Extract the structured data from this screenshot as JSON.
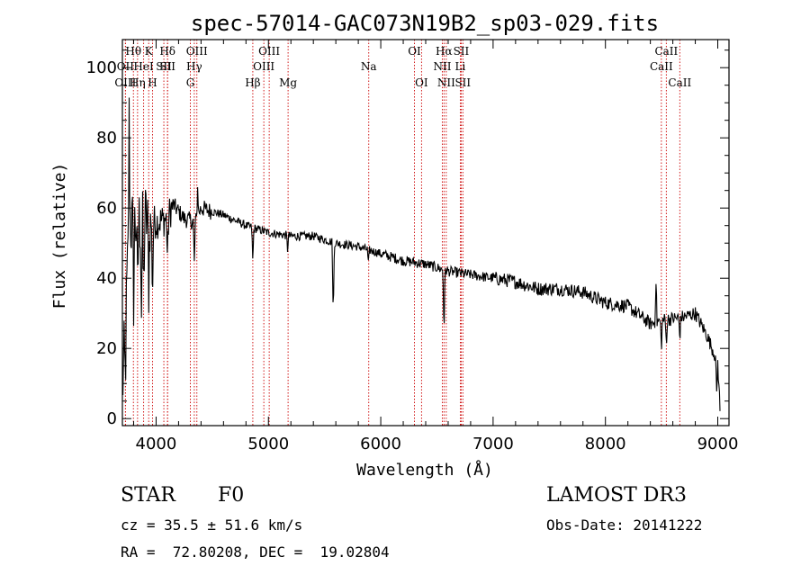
{
  "chart_data": {
    "type": "line",
    "title": "spec-57014-GAC073N19B2_sp03-029.fits",
    "xlabel": "Wavelength (Å)",
    "ylabel": "Flux (relative)",
    "xlim": [
      3700,
      9100
    ],
    "ylim": [
      -2,
      108
    ],
    "x_ticks": [
      4000,
      5000,
      6000,
      7000,
      8000,
      9000
    ],
    "y_ticks": [
      0,
      20,
      40,
      60,
      80,
      100
    ],
    "continuum": [
      [
        3700,
        8
      ],
      [
        3720,
        20
      ],
      [
        3760,
        55
      ],
      [
        3800,
        55
      ],
      [
        3900,
        57
      ],
      [
        4000,
        56
      ],
      [
        4100,
        57
      ],
      [
        4150,
        61
      ],
      [
        4250,
        57
      ],
      [
        4350,
        56
      ],
      [
        4400,
        60
      ],
      [
        4600,
        58
      ],
      [
        4800,
        55
      ],
      [
        5000,
        53
      ],
      [
        5200,
        52
      ],
      [
        5400,
        52
      ],
      [
        5600,
        50
      ],
      [
        5800,
        49
      ],
      [
        6000,
        47
      ],
      [
        6200,
        45
      ],
      [
        6400,
        44
      ],
      [
        6600,
        42
      ],
      [
        6800,
        41
      ],
      [
        7000,
        40
      ],
      [
        7200,
        39
      ],
      [
        7400,
        37
      ],
      [
        7600,
        37
      ],
      [
        7800,
        36
      ],
      [
        8000,
        33
      ],
      [
        8200,
        32
      ],
      [
        8400,
        27
      ],
      [
        8500,
        28
      ],
      [
        8700,
        29
      ],
      [
        8800,
        30
      ],
      [
        8900,
        24
      ],
      [
        9000,
        16
      ],
      [
        9020,
        3
      ]
    ],
    "features": [
      {
        "x": 3727,
        "depth": -15
      },
      {
        "x": 3760,
        "depth": 30
      },
      {
        "x": 3800,
        "depth": -20
      },
      {
        "x": 3835,
        "depth": -20
      },
      {
        "x": 3870,
        "depth": -25
      },
      {
        "x": 3889,
        "depth": -22
      },
      {
        "x": 3934,
        "depth": -20
      },
      {
        "x": 3968,
        "depth": -22
      },
      {
        "x": 4102,
        "depth": -12
      },
      {
        "x": 4340,
        "depth": -12
      },
      {
        "x": 4370,
        "depth": 8
      },
      {
        "x": 4861,
        "depth": -10
      },
      {
        "x": 5170,
        "depth": -4
      },
      {
        "x": 5577,
        "depth": -22
      },
      {
        "x": 5890,
        "depth": -4
      },
      {
        "x": 6563,
        "depth": -18
      },
      {
        "x": 8450,
        "depth": 12
      },
      {
        "x": 8498,
        "depth": -8
      },
      {
        "x": 8542,
        "depth": -7
      },
      {
        "x": 8662,
        "depth": -6
      },
      {
        "x": 8990,
        "depth": -10
      }
    ],
    "spectral_lines": [
      {
        "label": "Hθ",
        "x": 3798,
        "row": 1
      },
      {
        "label": "OII",
        "x": 3727,
        "row": 2
      },
      {
        "label": "OIII",
        "x": 3727,
        "row": 3
      },
      {
        "label": "K",
        "x": 3934,
        "row": 1
      },
      {
        "label": "HeI",
        "x": 3889,
        "row": 2
      },
      {
        "label": "Hη",
        "x": 3835,
        "row": 3
      },
      {
        "label": "SII",
        "x": 4069,
        "row": 2
      },
      {
        "label": "H",
        "x": 3968,
        "row": 3
      },
      {
        "label": "Hδ",
        "x": 4102,
        "row": 1
      },
      {
        "label": "SII",
        "x": 4102,
        "row": 2
      },
      {
        "label": "OIII",
        "x": 4363,
        "row": 1
      },
      {
        "label": "Hγ",
        "x": 4340,
        "row": 2
      },
      {
        "label": "G",
        "x": 4305,
        "row": 3
      },
      {
        "label": "OIII",
        "x": 5007,
        "row": 1
      },
      {
        "label": "OIII",
        "x": 4959,
        "row": 2
      },
      {
        "label": "Hβ",
        "x": 4861,
        "row": 3
      },
      {
        "label": "Mg",
        "x": 5175,
        "row": 3
      },
      {
        "label": "Na",
        "x": 5893,
        "row": 2
      },
      {
        "label": "OI",
        "x": 6300,
        "row": 1
      },
      {
        "label": "OI",
        "x": 6363,
        "row": 3
      },
      {
        "label": "Hα",
        "x": 6563,
        "row": 1
      },
      {
        "label": "NII",
        "x": 6548,
        "row": 2
      },
      {
        "label": "NII",
        "x": 6583,
        "row": 3
      },
      {
        "label": "SII",
        "x": 6716,
        "row": 1
      },
      {
        "label": "Li",
        "x": 6708,
        "row": 2
      },
      {
        "label": "SII",
        "x": 6731,
        "row": 3
      },
      {
        "label": "CaII",
        "x": 8542,
        "row": 1
      },
      {
        "label": "CaII",
        "x": 8498,
        "row": 2
      },
      {
        "label": "CaII",
        "x": 8662,
        "row": 3
      }
    ]
  },
  "info": {
    "class": "STAR",
    "subclass": "F0",
    "survey": "LAMOST DR3",
    "redshift": "cz = 35.5 ± 51.6 km/s",
    "obs_date": "Obs-Date: 20141222",
    "coords": "RA =  72.80208, DEC =  19.02804"
  },
  "colors": {
    "line_marker": "#cc0000",
    "spectrum": "#000000"
  }
}
